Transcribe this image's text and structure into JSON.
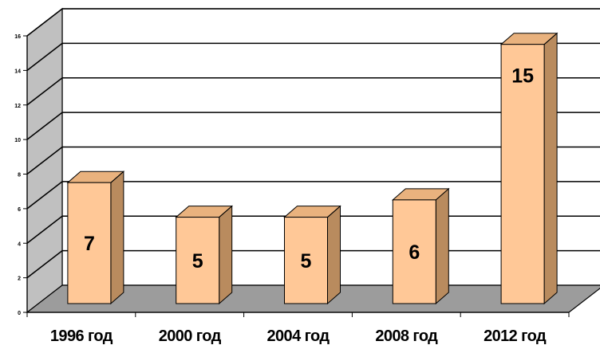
{
  "chart_data": {
    "type": "bar",
    "three_d": true,
    "categories": [
      "1996 год",
      "2000 год",
      "2004 год",
      "2008 год",
      "2012 год"
    ],
    "values": [
      7,
      5,
      5,
      6,
      15
    ],
    "data_labels": [
      "7",
      "5",
      "5",
      "6",
      "15"
    ],
    "ylim": [
      0,
      16
    ],
    "yticks": [
      0,
      2,
      4,
      6,
      8,
      10,
      12,
      14,
      16
    ],
    "ytick_labels": [
      "0",
      "2",
      "4",
      "6",
      "8",
      "10",
      "12",
      "14",
      "16"
    ],
    "grid": true,
    "legend": "none",
    "title": "",
    "xlabel": "",
    "ylabel": "",
    "colors": {
      "bar_front": "#ffc897",
      "bar_top": "#e9b27e",
      "bar_side": "#b98b5e",
      "back_wall": "#ffffff",
      "side_wall": "#c0c0c0",
      "floor": "#9c9c9c",
      "gridline": "#000000"
    }
  }
}
